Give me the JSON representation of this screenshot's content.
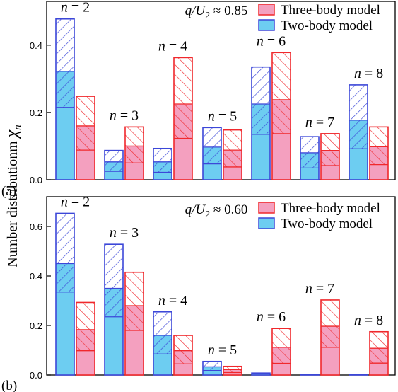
{
  "figure": {
    "ylabel_main": "Number distributionm ",
    "ylabel_symbol": "χ",
    "ylabel_sub": "n"
  },
  "chart_data": [
    {
      "panel_label": "(a)",
      "type": "bar",
      "annotation": "q/U₂ ≈ 0.85",
      "legend": [
        {
          "name": "Three-body model",
          "color": "#f0282c",
          "fill": "#f4a0bf"
        },
        {
          "name": "Two-body model",
          "color": "#3c47d8",
          "fill": "#6dcdf1"
        }
      ],
      "legend_position": "top-right",
      "ylim": [
        0,
        0.53
      ],
      "yticks": [
        0.0,
        0.2,
        0.4
      ],
      "ytick_labels": [
        "0.0",
        "0.2",
        "0.4"
      ],
      "categories": [
        "n = 2",
        "n = 3",
        "n = 4",
        "n = 5",
        "n = 6",
        "n = 7",
        "n = 8"
      ],
      "series": [
        {
          "name": "Two-body model",
          "segments": [
            [
              0.215,
              0.322,
              0.478
            ],
            [
              0.025,
              0.053,
              0.087
            ],
            [
              0.022,
              0.053,
              0.093
            ],
            [
              0.047,
              0.097,
              0.155
            ],
            [
              0.135,
              0.225,
              0.335
            ],
            [
              0.035,
              0.08,
              0.128
            ],
            [
              0.092,
              0.177,
              0.282
            ]
          ]
        },
        {
          "name": "Three-body model",
          "segments": [
            [
              0.088,
              0.16,
              0.248
            ],
            [
              0.05,
              0.1,
              0.157
            ],
            [
              0.123,
              0.225,
              0.363
            ],
            [
              0.038,
              0.088,
              0.148
            ],
            [
              0.137,
              0.238,
              0.378
            ],
            [
              0.042,
              0.087,
              0.137
            ],
            [
              0.045,
              0.098,
              0.157
            ]
          ]
        }
      ]
    },
    {
      "panel_label": "(b)",
      "type": "bar",
      "annotation": "q/U₂ ≈ 0.60",
      "legend": [
        {
          "name": "Three-body model",
          "color": "#f0282c",
          "fill": "#f4a0bf"
        },
        {
          "name": "Two-body model",
          "color": "#3c47d8",
          "fill": "#6dcdf1"
        }
      ],
      "legend_position": "top-right",
      "ylim": [
        0,
        0.72
      ],
      "yticks": [
        0.0,
        0.2,
        0.4,
        0.6
      ],
      "ytick_labels": [
        "0.0",
        "0.2",
        "0.4",
        "0.6"
      ],
      "categories": [
        "n = 2",
        "n = 3",
        "n = 4",
        "n = 5",
        "n = 6",
        "n = 7",
        "n = 8"
      ],
      "series": [
        {
          "name": "Two-body model",
          "segments": [
            [
              0.335,
              0.45,
              0.653
            ],
            [
              0.235,
              0.35,
              0.528
            ],
            [
              0.085,
              0.16,
              0.255
            ],
            [
              0.018,
              0.033,
              0.055
            ],
            [
              0.008,
              0.008,
              0.008
            ],
            [
              0.003,
              0.003,
              0.003
            ],
            [
              0.003,
              0.003,
              0.003
            ]
          ]
        },
        {
          "name": "Three-body model",
          "segments": [
            [
              0.098,
              0.183,
              0.293
            ],
            [
              0.18,
              0.28,
              0.415
            ],
            [
              0.045,
              0.098,
              0.16
            ],
            [
              0.01,
              0.022,
              0.035
            ],
            [
              0.047,
              0.112,
              0.188
            ],
            [
              0.112,
              0.197,
              0.303
            ],
            [
              0.048,
              0.108,
              0.175
            ]
          ]
        }
      ]
    }
  ]
}
